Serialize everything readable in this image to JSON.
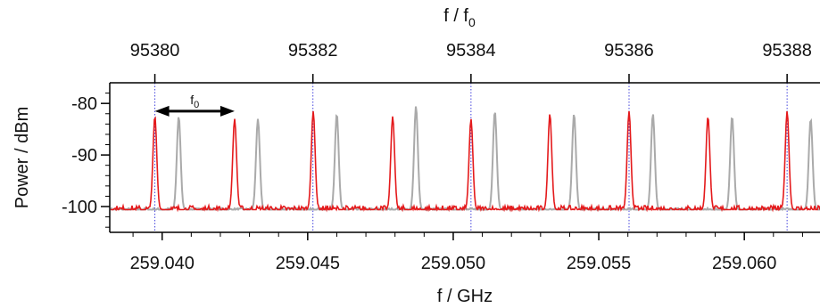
{
  "chart_data": {
    "type": "line",
    "x_axis_bottom": {
      "label": "f / GHz",
      "range": [
        259.0382,
        259.0626
      ],
      "ticks": [
        259.04,
        259.045,
        259.05,
        259.055,
        259.06
      ],
      "tick_labels": [
        "259.040",
        "259.045",
        "259.050",
        "259.055",
        "259.060"
      ]
    },
    "x_axis_top": {
      "label_main": "f / f",
      "label_sub": "0",
      "ticks_ghz": [
        259.03975,
        259.04518,
        259.05061,
        259.05604,
        259.06147
      ],
      "tick_labels": [
        "95380",
        "95382",
        "95384",
        "95386",
        "95388"
      ]
    },
    "y_axis": {
      "label": "Power / dBm",
      "range": [
        -105,
        -76
      ],
      "ticks": [
        -80,
        -90,
        -100
      ],
      "tick_labels": [
        "-80",
        "-90",
        "-100"
      ]
    },
    "baseline_dbm": -100.6,
    "grid": "dotted vertical lines at top-axis ticks",
    "series": [
      {
        "color": "#e41a1c",
        "peaks": [
          {
            "x": 259.03975,
            "y": -82.5
          },
          {
            "x": 259.04249,
            "y": -83.0
          },
          {
            "x": 259.04519,
            "y": -81.5
          },
          {
            "x": 259.04792,
            "y": -82.5
          },
          {
            "x": 259.05061,
            "y": -83.0
          },
          {
            "x": 259.05332,
            "y": -82.0
          },
          {
            "x": 259.05604,
            "y": -81.5
          },
          {
            "x": 259.05875,
            "y": -82.5
          },
          {
            "x": 259.06147,
            "y": -81.5
          }
        ]
      },
      {
        "color": "#aaaaaa",
        "peaks": [
          {
            "x": 259.04057,
            "y": -82.5
          },
          {
            "x": 259.04329,
            "y": -83.0
          },
          {
            "x": 259.046,
            "y": -82.0
          },
          {
            "x": 259.04872,
            "y": -80.5
          },
          {
            "x": 259.05143,
            "y": -81.5
          },
          {
            "x": 259.05415,
            "y": -82.0
          },
          {
            "x": 259.05686,
            "y": -82.0
          },
          {
            "x": 259.05958,
            "y": -82.5
          },
          {
            "x": 259.06228,
            "y": -83.0
          }
        ]
      }
    ],
    "annotation": {
      "label_main": "f",
      "label_sub": "0",
      "from_x": 259.03975,
      "to_x": 259.04249,
      "y": -81.5
    },
    "colors": {
      "red": "#e41a1c",
      "grey": "#aaaaaa",
      "grid": "#4444dd",
      "axis": "#000000"
    }
  }
}
